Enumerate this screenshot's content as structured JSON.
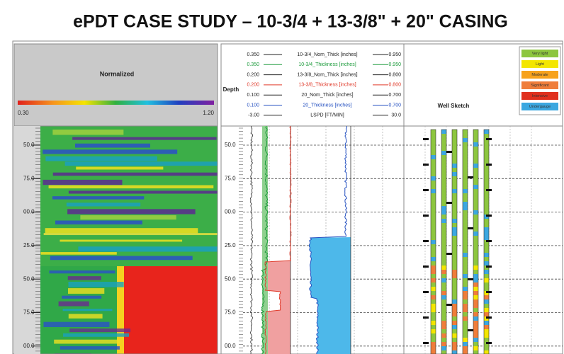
{
  "title": "ePDT CASE STUDY – 10-3/4 + 13-3/8\" + 20\" CASING",
  "left_panel": {
    "header": "Normalized",
    "scale_min": "0.30",
    "scale_max": "1.20",
    "depths": [
      "50.0",
      "75.0",
      "00.0",
      "25.0",
      "50.0",
      "75.0",
      "00.0"
    ]
  },
  "log_panel": {
    "depth_label": "Depth",
    "curves": [
      {
        "left": "0.350",
        "name": "10-3/4_Nom_Thick [inches]",
        "right": "0.950",
        "color": "#222222"
      },
      {
        "left": "0.350",
        "name": "10-3/4_Thickness [inches]",
        "right": "0.950",
        "color": "#1a9a3a"
      },
      {
        "left": "0.200",
        "name": "13-3/8_Nom_Thick [inches]",
        "right": "0.800",
        "color": "#222222"
      },
      {
        "left": "0.200",
        "name": "13-3/8_Thickness [inches]",
        "right": "0.800",
        "color": "#e03a2a"
      },
      {
        "left": "0.100",
        "name": "20_Nom_Thick [inches]",
        "right": "0.700",
        "color": "#222222"
      },
      {
        "left": "0.100",
        "name": "20_Thickness [inches]",
        "right": "0.700",
        "color": "#2450c0"
      },
      {
        "left": "-3.00",
        "name": "LSPD [FT/MIN]",
        "right": "30.0",
        "color": "#222222"
      }
    ],
    "depths": [
      "50.0",
      "75.0",
      "00.0",
      "25.0",
      "50.0",
      "75.0",
      "00.0"
    ]
  },
  "well_sketch": {
    "header": "Well Sketch",
    "legend": [
      {
        "label": "Very light",
        "color": "#8dc63f"
      },
      {
        "label": "Light",
        "color": "#f3e600"
      },
      {
        "label": "Moderate",
        "color": "#f7a21b"
      },
      {
        "label": "Significant",
        "color": "#ef7d3a"
      },
      {
        "label": "Intensive",
        "color": "#e0301e"
      },
      {
        "label": "Undergauge",
        "color": "#3ba7e0"
      }
    ]
  }
}
